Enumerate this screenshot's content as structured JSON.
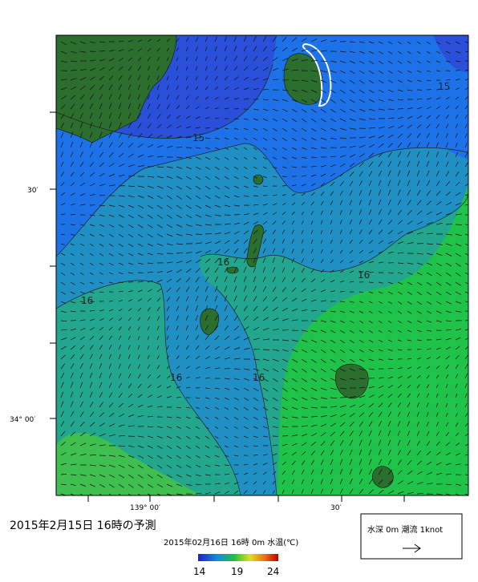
{
  "map": {
    "axis_labels": {
      "left": [
        "30′",
        "34° 00′"
      ],
      "bottom": [
        "139° 00′",
        "30′"
      ]
    },
    "contour_labels": [
      "15",
      "15",
      "16",
      "16",
      "16",
      "16",
      "16"
    ]
  },
  "caption": "2015年2月15日  16時の予測",
  "colorbar": {
    "title": "2015年02月16日 16時 0m 水温(℃)",
    "labels": [
      14,
      19,
      24
    ]
  },
  "legend": {
    "text": "水深 0m 潮流 1knot"
  }
}
